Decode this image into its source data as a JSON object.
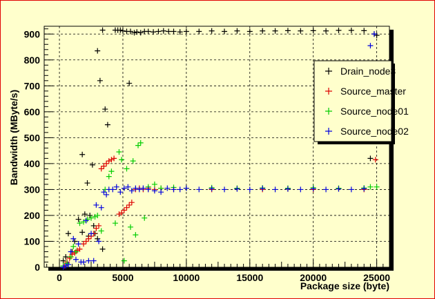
{
  "chart_data": {
    "type": "scatter",
    "title": "",
    "xlabel": "Package size (byte)",
    "ylabel": "Bandwidth (MByte/s)",
    "xlim": [
      -1200,
      26000
    ],
    "ylim": [
      0,
      930
    ],
    "xticks": [
      0,
      5000,
      10000,
      15000,
      20000,
      25000
    ],
    "yticks": [
      0,
      100,
      200,
      300,
      400,
      500,
      600,
      700,
      800,
      900
    ],
    "grid": true,
    "legend_position": "top-right",
    "colors": {
      "background": "#ffffcc",
      "frame": "#e00000",
      "grid": "#000000"
    },
    "series": [
      {
        "name": "Drain_node3",
        "color": "#000000",
        "x": [
          300,
          500,
          700,
          1000,
          1200,
          1500,
          1800,
          2000,
          2200,
          2400,
          2600,
          2800,
          3000,
          3200,
          3400,
          3600,
          3800,
          3400,
          3000,
          2700,
          2300,
          1800,
          4400,
          4600,
          4800,
          5000,
          5300,
          5600,
          5900,
          6100,
          6400,
          6700,
          7000,
          7400,
          7800,
          8200,
          8600,
          9000,
          9500,
          10000,
          11000,
          12000,
          13000,
          14000,
          15000,
          16000,
          17000,
          18000,
          19000,
          20000,
          21000,
          22000,
          23000,
          24000,
          24500,
          24800,
          25000,
          5500
        ],
        "y": [
          25,
          40,
          130,
          60,
          100,
          185,
          135,
          205,
          325,
          200,
          395,
          130,
          835,
          720,
          915,
          610,
          550,
          70,
          110,
          160,
          120,
          435,
          915,
          915,
          915,
          912,
          910,
          910,
          905,
          908,
          905,
          910,
          910,
          908,
          910,
          912,
          910,
          910,
          908,
          910,
          910,
          912,
          910,
          912,
          910,
          912,
          912,
          913,
          912,
          913,
          912,
          914,
          914,
          913,
          420,
          900,
          895,
          710
        ]
      },
      {
        "name": "Source_master",
        "color": "#dd0000",
        "x": [
          400,
          600,
          800,
          1000,
          1200,
          1400,
          1600,
          1900,
          2100,
          2300,
          2500,
          2700,
          2900,
          3100,
          3300,
          3500,
          3700,
          3900,
          4100,
          4300,
          4700,
          4900,
          5100,
          5300,
          5500,
          5700,
          6000,
          6300,
          6600,
          7000,
          7500,
          8000,
          9000,
          10000,
          12000,
          14000,
          16000,
          18000,
          20000,
          22000,
          24000,
          24900
        ],
        "y": [
          5,
          20,
          35,
          50,
          55,
          65,
          70,
          90,
          100,
          110,
          120,
          130,
          150,
          160,
          380,
          390,
          400,
          410,
          415,
          420,
          205,
          210,
          220,
          230,
          240,
          250,
          300,
          305,
          300,
          305,
          300,
          305,
          300,
          305,
          300,
          303,
          300,
          302,
          300,
          303,
          300,
          415
        ]
      },
      {
        "name": "Source_node01",
        "color": "#00cc00",
        "x": [
          300,
          600,
          900,
          1100,
          1300,
          1600,
          1900,
          2200,
          2500,
          2800,
          3000,
          3300,
          3600,
          3900,
          4100,
          4400,
          4700,
          4900,
          5100,
          5300,
          5600,
          5800,
          6000,
          6200,
          6400,
          6700,
          7000,
          7500,
          8000,
          9000,
          10000,
          12000,
          14000,
          16000,
          18000,
          20000,
          22000,
          24000,
          24500,
          25000
        ],
        "y": [
          5,
          15,
          40,
          80,
          60,
          170,
          175,
          185,
          190,
          195,
          200,
          140,
          300,
          350,
          370,
          170,
          445,
          415,
          25,
          380,
          155,
          410,
          125,
          470,
          480,
          190,
          310,
          320,
          305,
          308,
          305,
          307,
          305,
          306,
          305,
          307,
          305,
          306,
          310,
          310
        ]
      },
      {
        "name": "Source_node02",
        "color": "#0000dd",
        "x": [
          300,
          500,
          700,
          900,
          1100,
          1300,
          1500,
          1700,
          1900,
          2100,
          2300,
          2500,
          2700,
          2900,
          3100,
          3300,
          3500,
          3700,
          3900,
          4200,
          4500,
          4800,
          5100,
          5400,
          5700,
          6000,
          6300,
          6600,
          7000,
          7500,
          8000,
          8500,
          9000,
          9500,
          10000,
          11000,
          12000,
          13000,
          14000,
          15000,
          16000,
          17000,
          18000,
          19000,
          20000,
          21000,
          22000,
          23000,
          24000,
          24500,
          24800
        ],
        "y": [
          0,
          5,
          10,
          60,
          110,
          30,
          90,
          20,
          20,
          180,
          25,
          130,
          25,
          240,
          100,
          230,
          290,
          280,
          300,
          300,
          310,
          290,
          305,
          310,
          295,
          305,
          300,
          305,
          300,
          295,
          290,
          305,
          300,
          300,
          305,
          300,
          303,
          300,
          302,
          300,
          304,
          300,
          302,
          300,
          303,
          300,
          302,
          300,
          303,
          855,
          900
        ]
      }
    ]
  }
}
